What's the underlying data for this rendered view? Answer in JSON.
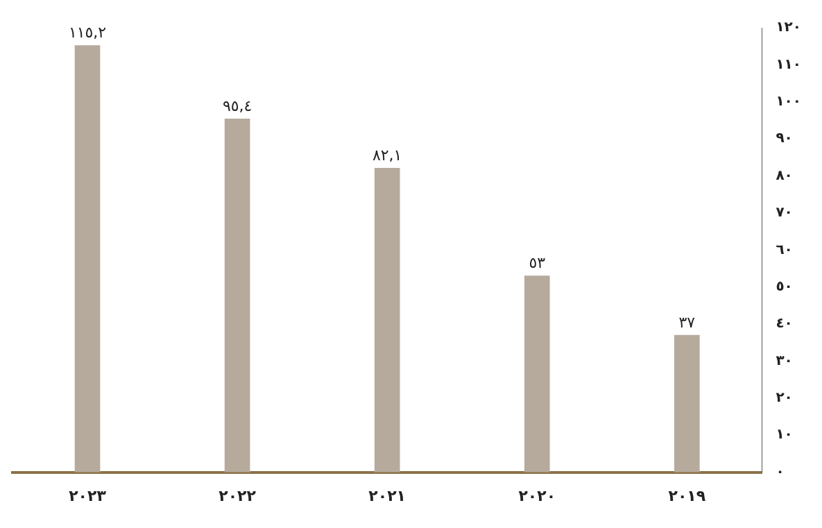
{
  "chart_data": {
    "type": "bar",
    "categories": [
      "٢٠٢٣",
      "٢٠٢٢",
      "٢٠٢١",
      "٢٠٢٠",
      "٢٠١٩"
    ],
    "values": [
      115.2,
      95.4,
      82.1,
      53,
      37
    ],
    "value_labels": [
      "١١٥,٢",
      "٩٥,٤",
      "٨٢,١",
      "٥٣",
      "٣٧"
    ],
    "color": "#b5aa9c",
    "ylim": [
      0,
      120
    ],
    "yticks": [
      {
        "value": 0,
        "label": "٠"
      },
      {
        "value": 10,
        "label": "١٠"
      },
      {
        "value": 20,
        "label": "٢٠"
      },
      {
        "value": 30,
        "label": "٣٠"
      },
      {
        "value": 40,
        "label": "٤٠"
      },
      {
        "value": 50,
        "label": "٥٠"
      },
      {
        "value": 60,
        "label": "٦٠"
      },
      {
        "value": 70,
        "label": "٧٠"
      },
      {
        "value": 80,
        "label": "٨٠"
      },
      {
        "value": 90,
        "label": "٩٠"
      },
      {
        "value": 100,
        "label": "١٠٠"
      },
      {
        "value": 110,
        "label": "١١٠"
      },
      {
        "value": 120,
        "label": "١٢٠"
      }
    ],
    "grid": false,
    "legend": false
  }
}
